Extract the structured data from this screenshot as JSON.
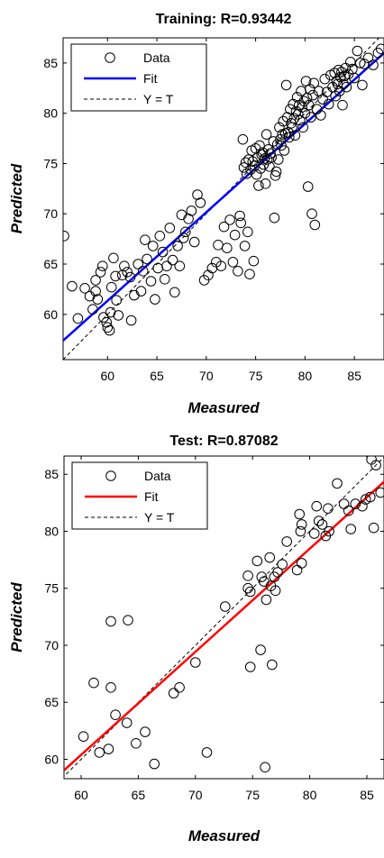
{
  "chart_data": [
    {
      "type": "scatter",
      "title": "Training: R=0.93442",
      "xlabel": "Measured",
      "ylabel": "Predicted",
      "xlim": [
        55.5,
        88
      ],
      "ylim": [
        55.5,
        87.5
      ],
      "xticks": [
        60,
        65,
        70,
        75,
        80,
        85
      ],
      "yticks": [
        60,
        65,
        70,
        75,
        80,
        85
      ],
      "grid": false,
      "legend_position": "top-left",
      "fit_color": "#0000ff",
      "fit_line": {
        "slope": 0.88,
        "intercept": 8.55
      },
      "legend": [
        {
          "label": "Data",
          "kind": "marker"
        },
        {
          "label": "Fit",
          "kind": "fit"
        },
        {
          "label": "Y = T",
          "kind": "identity"
        }
      ],
      "points": [
        [
          55.6,
          67.8
        ],
        [
          56.4,
          62.8
        ],
        [
          57.0,
          59.6
        ],
        [
          57.7,
          62.6
        ],
        [
          58.2,
          61.8
        ],
        [
          58.5,
          60.5
        ],
        [
          58.8,
          63.4
        ],
        [
          58.8,
          62.3
        ],
        [
          59.0,
          61.5
        ],
        [
          59.3,
          64.2
        ],
        [
          59.5,
          64.8
        ],
        [
          59.6,
          59.7
        ],
        [
          59.9,
          59.2
        ],
        [
          60.0,
          58.7
        ],
        [
          60.2,
          58.4
        ],
        [
          60.3,
          60.2
        ],
        [
          60.4,
          62.7
        ],
        [
          60.6,
          65.6
        ],
        [
          60.8,
          63.8
        ],
        [
          60.9,
          61.4
        ],
        [
          61.1,
          59.9
        ],
        [
          61.5,
          63.9
        ],
        [
          61.7,
          64.8
        ],
        [
          62.0,
          64.2
        ],
        [
          62.3,
          63.7
        ],
        [
          62.4,
          59.4
        ],
        [
          62.7,
          61.9
        ],
        [
          63.1,
          65.0
        ],
        [
          63.4,
          62.3
        ],
        [
          63.6,
          64.3
        ],
        [
          63.8,
          67.4
        ],
        [
          64.0,
          65.5
        ],
        [
          64.4,
          63.3
        ],
        [
          64.6,
          66.8
        ],
        [
          64.8,
          61.5
        ],
        [
          65.1,
          64.6
        ],
        [
          65.3,
          67.8
        ],
        [
          65.6,
          66.2
        ],
        [
          65.8,
          63.5
        ],
        [
          66.0,
          64.8
        ],
        [
          66.3,
          68.6
        ],
        [
          66.6,
          65.4
        ],
        [
          66.8,
          62.2
        ],
        [
          67.1,
          66.8
        ],
        [
          67.3,
          64.8
        ],
        [
          67.5,
          69.9
        ],
        [
          67.7,
          67.6
        ],
        [
          67.9,
          68.2
        ],
        [
          68.2,
          69.5
        ],
        [
          68.5,
          70.3
        ],
        [
          68.8,
          67.2
        ],
        [
          69.1,
          71.9
        ],
        [
          69.4,
          71.1
        ],
        [
          69.8,
          63.4
        ],
        [
          70.2,
          63.9
        ],
        [
          70.6,
          64.6
        ],
        [
          71.0,
          65.2
        ],
        [
          71.2,
          66.9
        ],
        [
          71.5,
          64.8
        ],
        [
          71.8,
          68.7
        ],
        [
          72.1,
          66.6
        ],
        [
          72.4,
          69.4
        ],
        [
          72.7,
          65.2
        ],
        [
          72.9,
          67.9
        ],
        [
          73.2,
          64.3
        ],
        [
          73.4,
          69.8
        ],
        [
          73.5,
          69.1
        ],
        [
          73.7,
          77.4
        ],
        [
          73.8,
          74.6
        ],
        [
          73.9,
          66.8
        ],
        [
          74.0,
          75.1
        ],
        [
          74.1,
          74.0
        ],
        [
          74.2,
          68.2
        ],
        [
          74.3,
          75.4
        ],
        [
          74.4,
          64.0
        ],
        [
          74.5,
          74.4
        ],
        [
          74.6,
          76.3
        ],
        [
          74.7,
          75.2
        ],
        [
          74.8,
          65.3
        ],
        [
          74.9,
          74.8
        ],
        [
          75.0,
          76.5
        ],
        [
          75.1,
          73.9
        ],
        [
          75.2,
          75.6
        ],
        [
          75.3,
          72.8
        ],
        [
          75.4,
          76.8
        ],
        [
          75.5,
          74.5
        ],
        [
          75.6,
          75.9
        ],
        [
          75.7,
          76.1
        ],
        [
          75.8,
          74.9
        ],
        [
          75.9,
          75.5
        ],
        [
          76.0,
          73.0
        ],
        [
          76.1,
          77.9
        ],
        [
          76.2,
          75.4
        ],
        [
          76.3,
          76.4
        ],
        [
          76.4,
          74.7
        ],
        [
          76.5,
          76.0
        ],
        [
          76.6,
          75.6
        ],
        [
          76.8,
          77.2
        ],
        [
          76.9,
          69.6
        ],
        [
          77.0,
          73.8
        ],
        [
          77.1,
          74.2
        ],
        [
          77.2,
          76.9
        ],
        [
          77.3,
          75.4
        ],
        [
          77.4,
          78.6
        ],
        [
          77.5,
          77.4
        ],
        [
          77.6,
          76.8
        ],
        [
          77.7,
          77.9
        ],
        [
          77.8,
          79.2
        ],
        [
          77.9,
          76.3
        ],
        [
          78.0,
          78.0
        ],
        [
          78.1,
          82.8
        ],
        [
          78.2,
          79.6
        ],
        [
          78.3,
          78.1
        ],
        [
          78.4,
          77.6
        ],
        [
          78.5,
          80.4
        ],
        [
          78.6,
          79.0
        ],
        [
          78.7,
          78.6
        ],
        [
          78.8,
          80.9
        ],
        [
          78.9,
          79.5
        ],
        [
          79.0,
          77.8
        ],
        [
          79.1,
          80.2
        ],
        [
          79.2,
          81.6
        ],
        [
          79.3,
          79.9
        ],
        [
          79.4,
          80.8
        ],
        [
          79.5,
          79.3
        ],
        [
          79.6,
          82.2
        ],
        [
          79.7,
          80.6
        ],
        [
          79.8,
          78.6
        ],
        [
          79.9,
          81.2
        ],
        [
          80.0,
          80.0
        ],
        [
          80.1,
          83.2
        ],
        [
          80.2,
          81.5
        ],
        [
          80.3,
          72.7
        ],
        [
          80.4,
          80.8
        ],
        [
          80.5,
          82.4
        ],
        [
          80.6,
          79.6
        ],
        [
          80.7,
          70.0
        ],
        [
          80.8,
          81.8
        ],
        [
          80.9,
          83.0
        ],
        [
          81.0,
          68.9
        ],
        [
          81.2,
          80.4
        ],
        [
          81.4,
          82.2
        ],
        [
          81.6,
          79.8
        ],
        [
          81.8,
          81.4
        ],
        [
          82.0,
          83.4
        ],
        [
          82.2,
          82.1
        ],
        [
          82.4,
          80.9
        ],
        [
          82.6,
          83.8
        ],
        [
          82.8,
          82.6
        ],
        [
          83.0,
          84.0
        ],
        [
          83.1,
          81.7
        ],
        [
          83.2,
          83.2
        ],
        [
          83.3,
          82.9
        ],
        [
          83.4,
          84.3
        ],
        [
          83.5,
          82.2
        ],
        [
          83.6,
          83.6
        ],
        [
          83.7,
          84.1
        ],
        [
          83.8,
          80.8
        ],
        [
          83.9,
          82.9
        ],
        [
          84.0,
          83.7
        ],
        [
          84.1,
          84.5
        ],
        [
          84.2,
          82.6
        ],
        [
          84.4,
          83.9
        ],
        [
          84.6,
          85.1
        ],
        [
          84.8,
          84.4
        ],
        [
          85.0,
          83.5
        ],
        [
          85.3,
          86.2
        ],
        [
          85.6,
          85.0
        ],
        [
          85.8,
          82.8
        ],
        [
          86.0,
          84.9
        ],
        [
          86.4,
          85.5
        ],
        [
          86.9,
          84.8
        ],
        [
          87.4,
          86.0
        ],
        [
          87.7,
          86.4
        ]
      ]
    },
    {
      "type": "scatter",
      "title": "Test: R=0.87082",
      "xlabel": "Measured",
      "ylabel": "Predicted",
      "xlim": [
        58.5,
        86.5
      ],
      "ylim": [
        58.3,
        86.6
      ],
      "xticks": [
        60,
        65,
        70,
        75,
        80,
        85
      ],
      "yticks": [
        60,
        65,
        70,
        75,
        80,
        85
      ],
      "grid": false,
      "legend_position": "top-left",
      "fit_color": "#ff0000",
      "fit_line": {
        "slope": 0.904,
        "intercept": 6.15
      },
      "legend": [
        {
          "label": "Data",
          "kind": "marker"
        },
        {
          "label": "Fit",
          "kind": "fit"
        },
        {
          "label": "Y = T",
          "kind": "identity"
        }
      ],
      "points": [
        [
          60.2,
          62.0
        ],
        [
          61.1,
          66.7
        ],
        [
          61.6,
          60.6
        ],
        [
          62.4,
          60.9
        ],
        [
          62.6,
          72.1
        ],
        [
          62.6,
          66.3
        ],
        [
          63.0,
          63.9
        ],
        [
          64.0,
          63.2
        ],
        [
          64.1,
          72.2
        ],
        [
          64.8,
          61.4
        ],
        [
          65.6,
          62.4
        ],
        [
          66.4,
          59.6
        ],
        [
          68.1,
          65.8
        ],
        [
          68.6,
          66.3
        ],
        [
          70.0,
          68.5
        ],
        [
          71.0,
          60.6
        ],
        [
          72.6,
          73.4
        ],
        [
          74.6,
          75.0
        ],
        [
          74.6,
          76.1
        ],
        [
          74.8,
          74.7
        ],
        [
          74.8,
          68.1
        ],
        [
          75.4,
          77.4
        ],
        [
          75.7,
          69.6
        ],
        [
          75.8,
          76.0
        ],
        [
          76.0,
          75.6
        ],
        [
          76.1,
          59.3
        ],
        [
          76.2,
          74.0
        ],
        [
          76.5,
          77.7
        ],
        [
          76.6,
          75.2
        ],
        [
          76.7,
          68.3
        ],
        [
          76.9,
          76.0
        ],
        [
          77.0,
          74.8
        ],
        [
          77.2,
          76.4
        ],
        [
          77.6,
          77.1
        ],
        [
          78.0,
          79.1
        ],
        [
          78.9,
          76.6
        ],
        [
          79.1,
          81.5
        ],
        [
          79.2,
          80.0
        ],
        [
          79.3,
          77.2
        ],
        [
          79.3,
          80.6
        ],
        [
          80.4,
          79.8
        ],
        [
          80.6,
          82.2
        ],
        [
          80.8,
          80.9
        ],
        [
          81.1,
          80.6
        ],
        [
          81.4,
          79.6
        ],
        [
          81.6,
          82.0
        ],
        [
          81.7,
          80.0
        ],
        [
          82.4,
          84.2
        ],
        [
          83.0,
          82.4
        ],
        [
          83.4,
          81.8
        ],
        [
          83.6,
          80.2
        ],
        [
          84.0,
          82.4
        ],
        [
          84.6,
          82.2
        ],
        [
          84.9,
          82.8
        ],
        [
          85.3,
          83.0
        ],
        [
          85.4,
          86.3
        ],
        [
          85.6,
          80.3
        ],
        [
          85.8,
          85.8
        ],
        [
          86.2,
          83.4
        ]
      ]
    }
  ]
}
